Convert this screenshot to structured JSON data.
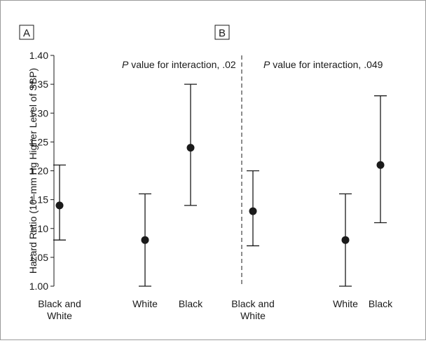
{
  "chart_data": {
    "type": "errorbar",
    "ylabel": "Hazard Ratio (10–mm Hg Higher Level of SBP)",
    "ylim": [
      1.0,
      1.4
    ],
    "yticks": [
      "1.00",
      "1.05",
      "1.10",
      "1.15",
      "1.20",
      "1.25",
      "1.30",
      "1.35",
      "1.40"
    ],
    "grid": false,
    "panels": [
      {
        "label": "A",
        "annotation_p": "P",
        "annotation_rest": " value for interaction, .02",
        "categories": [
          {
            "name": "Black and White",
            "lines": [
              "Black and",
              "White"
            ],
            "estimate": 1.14,
            "lower": 1.08,
            "upper": 1.21
          },
          {
            "name": "White",
            "lines": [
              "White"
            ],
            "estimate": 1.08,
            "lower": 1.0,
            "upper": 1.16
          },
          {
            "name": "Black",
            "lines": [
              "Black"
            ],
            "estimate": 1.24,
            "lower": 1.14,
            "upper": 1.35
          }
        ]
      },
      {
        "label": "B",
        "annotation_p": "P",
        "annotation_rest": " value for interaction, .049",
        "categories": [
          {
            "name": "Black and White",
            "lines": [
              "Black and",
              "White"
            ],
            "estimate": 1.13,
            "lower": 1.07,
            "upper": 1.2
          },
          {
            "name": "White",
            "lines": [
              "White"
            ],
            "estimate": 1.08,
            "lower": 1.0,
            "upper": 1.16
          },
          {
            "name": "Black",
            "lines": [
              "Black"
            ],
            "estimate": 1.21,
            "lower": 1.11,
            "upper": 1.33
          }
        ]
      }
    ]
  }
}
